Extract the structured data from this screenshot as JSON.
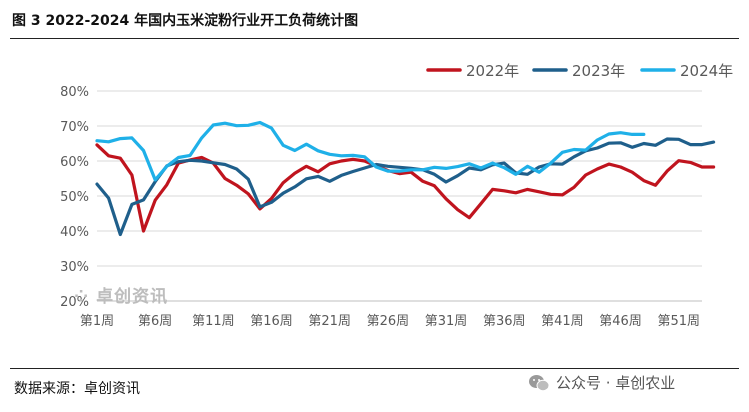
{
  "figure": {
    "title": "图 3 2022-2024 年国内玉米淀粉行业开工负荷统计图",
    "source": "数据来源：卓创资讯",
    "watermark": "卓创资讯",
    "wechat_label": "公众号 · 卓创农业"
  },
  "colors": {
    "series_2022": "#c0141e",
    "series_2023": "#1f5f8b",
    "series_2024": "#1fb0e8",
    "grid": "#d9d9d9",
    "tick_text": "#595959"
  },
  "chart_data": {
    "type": "line",
    "x_tick_labels": [
      "第1周",
      "第6周",
      "第11周",
      "第16周",
      "第21周",
      "第26周",
      "第31周",
      "第36周",
      "第41周",
      "第46周",
      "第51周"
    ],
    "x_tick_weeks": [
      1,
      6,
      11,
      16,
      21,
      26,
      31,
      36,
      41,
      46,
      51
    ],
    "y_tick_labels": [
      "20%",
      "30%",
      "40%",
      "50%",
      "60%",
      "70%",
      "80%"
    ],
    "ylim": [
      20,
      80
    ],
    "xlim": [
      1,
      53
    ],
    "grid": "horizontal",
    "legend_position": "top-right",
    "series": [
      {
        "name": "2022年",
        "color_key": "series_2022",
        "values": [
          64.6,
          61.5,
          60.8,
          56.0,
          40.0,
          48.8,
          53.2,
          59.4,
          60.3,
          61.0,
          59.4,
          55.0,
          53.1,
          50.6,
          46.3,
          49.3,
          53.8,
          56.5,
          58.5,
          56.9,
          59.2,
          60.0,
          60.5,
          60.0,
          58.6,
          57.3,
          56.4,
          56.8,
          54.2,
          52.9,
          49.2,
          46.1,
          43.8,
          47.8,
          51.9,
          51.5,
          50.9,
          51.9,
          51.2,
          50.5,
          50.3,
          52.5,
          56.0,
          57.7,
          59.1,
          58.3,
          56.8,
          54.4,
          53.1,
          57.1,
          60.1,
          59.6,
          58.3,
          58.3
        ]
      },
      {
        "name": "2023年",
        "color_key": "series_2023",
        "values": [
          53.4,
          49.4,
          39.0,
          47.6,
          48.9,
          54.1,
          58.6,
          59.8,
          60.2,
          60.0,
          59.5,
          59.0,
          57.7,
          54.8,
          46.9,
          48.2,
          50.8,
          52.6,
          54.9,
          55.6,
          54.2,
          55.9,
          57.0,
          58.0,
          59.0,
          58.5,
          58.2,
          57.9,
          57.5,
          56.2,
          54.0,
          55.8,
          58.0,
          57.5,
          58.9,
          59.4,
          56.6,
          56.2,
          58.3,
          59.2,
          59.1,
          61.2,
          62.9,
          63.7,
          65.1,
          65.2,
          63.9,
          65.0,
          64.5,
          66.3,
          66.2,
          64.7,
          64.7,
          65.4
        ]
      },
      {
        "name": "2024年",
        "color_key": "series_2024",
        "values": [
          65.8,
          65.5,
          66.4,
          66.6,
          63.0,
          54.6,
          58.5,
          61.0,
          61.6,
          66.6,
          70.3,
          70.8,
          70.1,
          70.2,
          71.0,
          69.4,
          64.5,
          63.0,
          64.8,
          62.9,
          61.9,
          61.5,
          61.6,
          61.2,
          58.3,
          57.1,
          57.1,
          57.5,
          57.5,
          58.2,
          57.9,
          58.4,
          59.2,
          58.0,
          59.4,
          58.1,
          56.2,
          58.5,
          56.8,
          59.4,
          62.5,
          63.3,
          63.1,
          66.0,
          67.7,
          68.1,
          67.6,
          67.6
        ]
      }
    ]
  }
}
